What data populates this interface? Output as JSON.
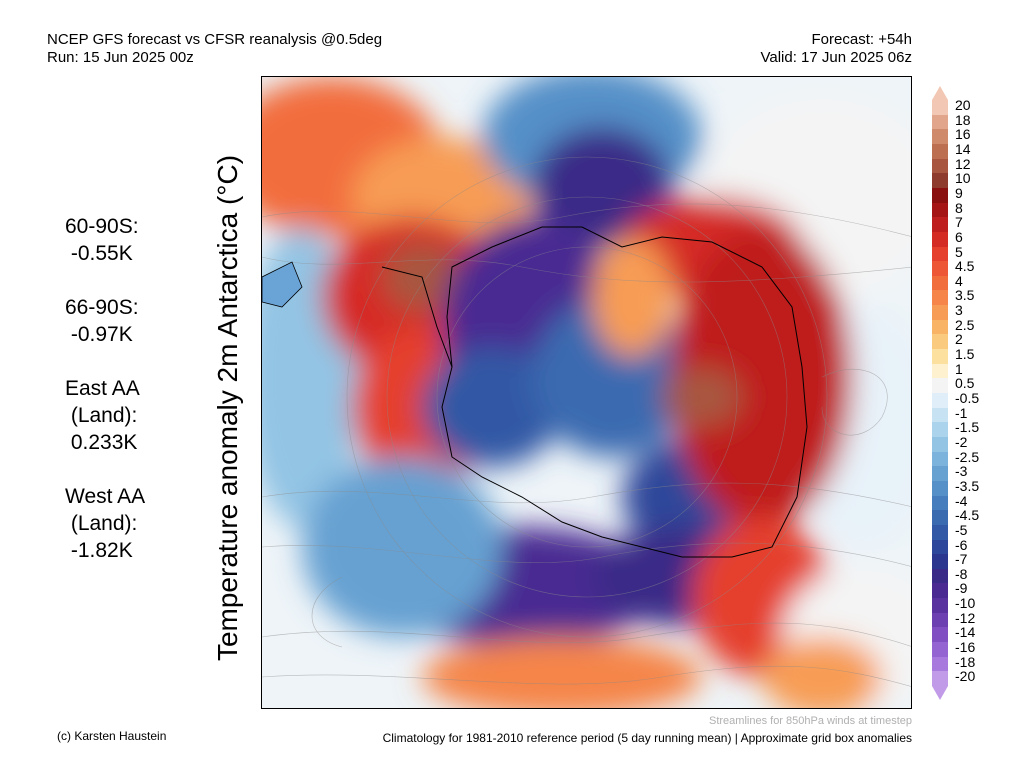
{
  "header": {
    "title": "NCEP GFS forecast vs CFSR reanalysis @0.5deg",
    "run": "Run: 15 Jun 2025 00z",
    "forecast": "Forecast: +54h",
    "valid": "Valid: 17 Jun 2025 06z"
  },
  "stats": [
    "60-90S:\n -0.55K",
    "66-90S:\n -0.97K",
    "East AA\n (Land):\n 0.233K",
    "West AA\n (Land):\n -1.82K"
  ],
  "axis_label": "Temperature anomaly 2m Antarctica (°C)",
  "colorbar": {
    "labels": [
      "20",
      "18",
      "16",
      "14",
      "12",
      "10",
      "9",
      "8",
      "7",
      "6",
      "5",
      "4.5",
      "4",
      "3.5",
      "3",
      "2.5",
      "2",
      "1.5",
      "1",
      "0.5",
      "-0.5",
      "-1",
      "-1.5",
      "-2",
      "-2.5",
      "-3",
      "-3.5",
      "-4",
      "-4.5",
      "-5",
      "-6",
      "-7",
      "-8",
      "-9",
      "-10",
      "-12",
      "-14",
      "-16",
      "-18",
      "-20"
    ],
    "colors": [
      "#f2c7b4",
      "#e0a58a",
      "#cf8a6c",
      "#bd6f52",
      "#a85640",
      "#8e3a2c",
      "#8a0f0f",
      "#a51515",
      "#bf1e1e",
      "#d52b25",
      "#e5402e",
      "#ee5735",
      "#f26d3c",
      "#f58548",
      "#f79c55",
      "#f9b365",
      "#facb7f",
      "#fbe0a0",
      "#fdf1cf",
      "#f4f4f4",
      "#dfeef8",
      "#c6e2f3",
      "#acd3ec",
      "#93c4e4",
      "#7bb3dc",
      "#66a1d2",
      "#5590c8",
      "#467dbc",
      "#3a6bb0",
      "#3259a5",
      "#2d479a",
      "#2b368e",
      "#3a2a87",
      "#4a2a92",
      "#5a329f",
      "#6c40b0",
      "#8050c2",
      "#9464d2",
      "#a97ade",
      "#c19be8"
    ]
  },
  "footer": {
    "credit": "(c) Karsten Haustein",
    "streamlines": "Streamlines for 850hPa winds at timestep",
    "climatology": "Climatology for 1981-2010 reference period (5 day running mean) | Approximate grid box anomalies"
  }
}
